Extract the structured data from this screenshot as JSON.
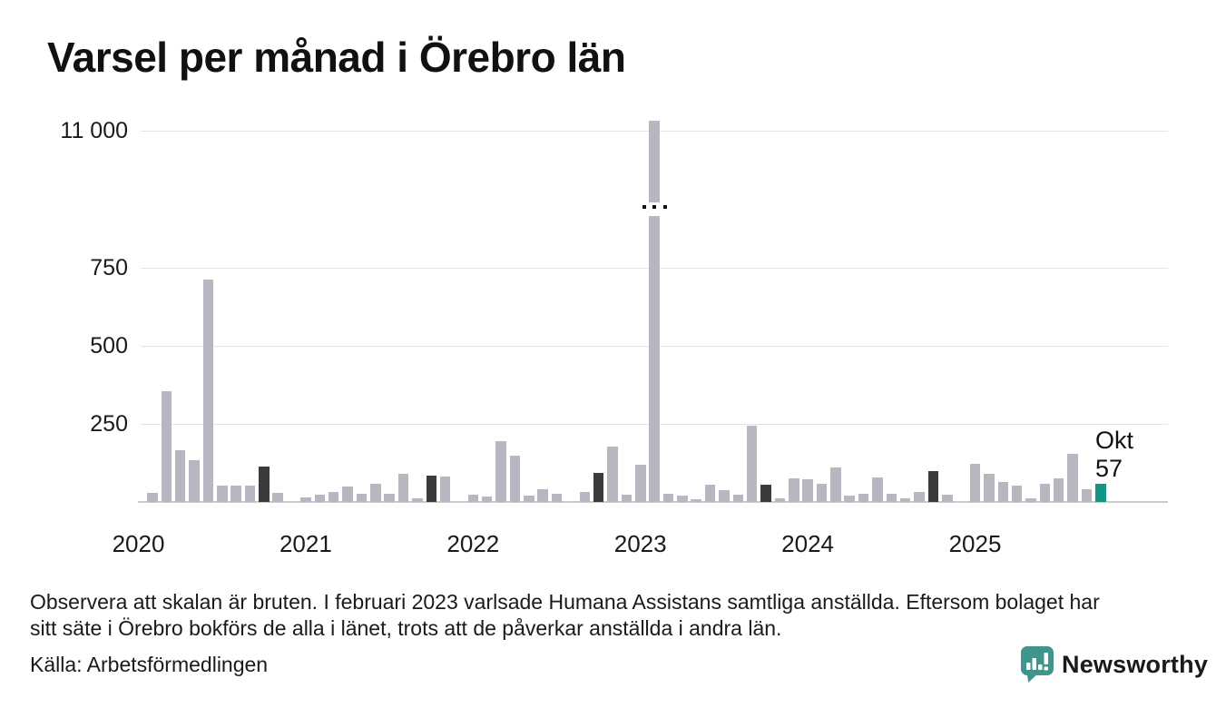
{
  "title": "Varsel per månad i Örebro län",
  "annotation": {
    "month_label": "Okt",
    "value_label": "57"
  },
  "footnote": {
    "line1": "Observera att skalan är bruten. I februari 2023 varlsade Humana Assistans samtliga anställda. Eftersom bolaget har",
    "line2": "sitt säte i Örebro bokförs de alla i länet, trots att de påverkar anställda i andra län."
  },
  "source": "Källa: Arbetsförmedlingen",
  "branding": {
    "logo_text": "Newsworthy",
    "logo_icon": "newsworthy-bubble-barchart-icon",
    "logo_color": "#3f948c"
  },
  "colors": {
    "bar_default": "#b9b6c2",
    "bar_october_previous_years": "#3b3b3b",
    "bar_current_month": "#169486",
    "gridline": "#e4e4e8",
    "axis_line": "#c9c9cf",
    "text": "#1a1a1a"
  },
  "chart_data": {
    "type": "bar",
    "title": "Varsel per månad i Örebro län",
    "x_tick_years": [
      "2020",
      "2021",
      "2022",
      "2023",
      "2024",
      "2025"
    ],
    "y_ticks": [
      {
        "label": "250",
        "value": 250
      },
      {
        "label": "500",
        "value": 500
      },
      {
        "label": "750",
        "value": 750
      },
      {
        "label": "11 000",
        "value": 11000,
        "above_break": true
      }
    ],
    "axis_break_between": [
      750,
      11000
    ],
    "legend_position": "none",
    "grid": "horizontal",
    "last_point_annotation": {
      "month": "Okt",
      "value": 57
    },
    "series": [
      {
        "m": "feb 2020",
        "v": 30,
        "k": "bar"
      },
      {
        "m": "mar 2020",
        "v": 355,
        "k": "bar"
      },
      {
        "m": "apr 2020",
        "v": 165,
        "k": "bar"
      },
      {
        "m": "maj 2020",
        "v": 133,
        "k": "bar"
      },
      {
        "m": "jun 2020",
        "v": 712,
        "k": "bar"
      },
      {
        "m": "jul 2020",
        "v": 53,
        "k": "bar"
      },
      {
        "m": "aug 2020",
        "v": 53,
        "k": "bar"
      },
      {
        "m": "sep 2020",
        "v": 53,
        "k": "bar"
      },
      {
        "m": "okt 2020",
        "v": 113,
        "k": "oct"
      },
      {
        "m": "nov 2020",
        "v": 29,
        "k": "bar"
      },
      {
        "m": "dec 2020",
        "v": 0,
        "k": "bar"
      },
      {
        "m": "jan 2021",
        "v": 15,
        "k": "bar"
      },
      {
        "m": "feb 2021",
        "v": 22,
        "k": "bar"
      },
      {
        "m": "mar 2021",
        "v": 32,
        "k": "bar"
      },
      {
        "m": "apr 2021",
        "v": 48,
        "k": "bar"
      },
      {
        "m": "maj 2021",
        "v": 26,
        "k": "bar"
      },
      {
        "m": "jun 2021",
        "v": 58,
        "k": "bar"
      },
      {
        "m": "jul 2021",
        "v": 26,
        "k": "bar"
      },
      {
        "m": "aug 2021",
        "v": 91,
        "k": "bar"
      },
      {
        "m": "sep 2021",
        "v": 12,
        "k": "bar"
      },
      {
        "m": "okt 2021",
        "v": 83,
        "k": "oct"
      },
      {
        "m": "nov 2021",
        "v": 81,
        "k": "bar"
      },
      {
        "m": "dec 2021",
        "v": 0,
        "k": "bar"
      },
      {
        "m": "jan 2022",
        "v": 24,
        "k": "bar"
      },
      {
        "m": "feb 2022",
        "v": 17,
        "k": "bar"
      },
      {
        "m": "mar 2022",
        "v": 196,
        "k": "bar"
      },
      {
        "m": "apr 2022",
        "v": 148,
        "k": "bar"
      },
      {
        "m": "maj 2022",
        "v": 20,
        "k": "bar"
      },
      {
        "m": "jun 2022",
        "v": 42,
        "k": "bar"
      },
      {
        "m": "jul 2022",
        "v": 26,
        "k": "bar"
      },
      {
        "m": "aug 2022",
        "v": 0,
        "k": "bar"
      },
      {
        "m": "sep 2022",
        "v": 31,
        "k": "bar"
      },
      {
        "m": "okt 2022",
        "v": 92,
        "k": "oct"
      },
      {
        "m": "nov 2022",
        "v": 176,
        "k": "bar"
      },
      {
        "m": "dec 2022",
        "v": 24,
        "k": "bar"
      },
      {
        "m": "jan 2023",
        "v": 120,
        "k": "bar"
      },
      {
        "m": "feb 2023",
        "v": 11300,
        "k": "bar",
        "broken": true
      },
      {
        "m": "mar 2023",
        "v": 26,
        "k": "bar"
      },
      {
        "m": "apr 2023",
        "v": 19,
        "k": "bar"
      },
      {
        "m": "maj 2023",
        "v": 10,
        "k": "bar"
      },
      {
        "m": "jun 2023",
        "v": 55,
        "k": "bar"
      },
      {
        "m": "jul 2023",
        "v": 39,
        "k": "bar"
      },
      {
        "m": "aug 2023",
        "v": 24,
        "k": "bar"
      },
      {
        "m": "sep 2023",
        "v": 245,
        "k": "bar"
      },
      {
        "m": "okt 2023",
        "v": 55,
        "k": "oct"
      },
      {
        "m": "nov 2023",
        "v": 13,
        "k": "bar"
      },
      {
        "m": "dec 2023",
        "v": 77,
        "k": "bar"
      },
      {
        "m": "jan 2024",
        "v": 73,
        "k": "bar"
      },
      {
        "m": "feb 2024",
        "v": 58,
        "k": "bar"
      },
      {
        "m": "mar 2024",
        "v": 110,
        "k": "bar"
      },
      {
        "m": "apr 2024",
        "v": 21,
        "k": "bar"
      },
      {
        "m": "maj 2024",
        "v": 27,
        "k": "bar"
      },
      {
        "m": "jun 2024",
        "v": 79,
        "k": "bar"
      },
      {
        "m": "jul 2024",
        "v": 26,
        "k": "bar"
      },
      {
        "m": "aug 2024",
        "v": 13,
        "k": "bar"
      },
      {
        "m": "sep 2024",
        "v": 31,
        "k": "bar"
      },
      {
        "m": "okt 2024",
        "v": 100,
        "k": "oct"
      },
      {
        "m": "nov 2024",
        "v": 22,
        "k": "bar"
      },
      {
        "m": "dec 2024",
        "v": 0,
        "k": "bar"
      },
      {
        "m": "jan 2025",
        "v": 122,
        "k": "bar"
      },
      {
        "m": "feb 2025",
        "v": 90,
        "k": "bar"
      },
      {
        "m": "mar 2025",
        "v": 63,
        "k": "bar"
      },
      {
        "m": "apr 2025",
        "v": 53,
        "k": "bar"
      },
      {
        "m": "maj 2025",
        "v": 12,
        "k": "bar"
      },
      {
        "m": "jun 2025",
        "v": 57,
        "k": "bar"
      },
      {
        "m": "jul 2025",
        "v": 77,
        "k": "bar"
      },
      {
        "m": "aug 2025",
        "v": 155,
        "k": "bar"
      },
      {
        "m": "sep 2025",
        "v": 41,
        "k": "bar"
      },
      {
        "m": "okt 2025",
        "v": 57,
        "k": "cur"
      }
    ]
  }
}
